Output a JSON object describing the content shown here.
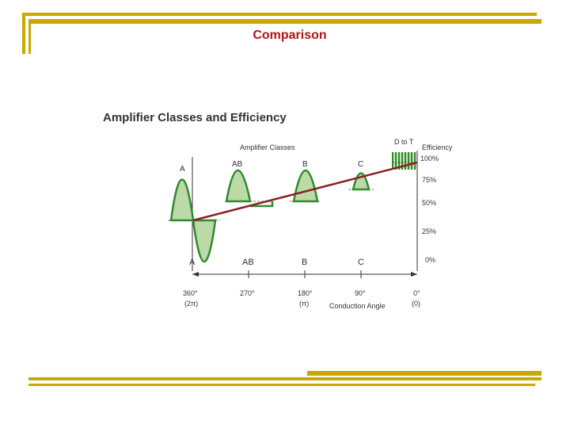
{
  "slide": {
    "title": "Comparison",
    "accent_color": "#c9a800",
    "title_color": "#b01515"
  },
  "figure": {
    "heading": "Amplifier Classes and Efficiency",
    "top_axis_label": "Amplifier Classes",
    "classes_top": [
      "A",
      "AB",
      "B",
      "C",
      "D to T"
    ],
    "classes_bottom": [
      "A",
      "AB",
      "B",
      "C"
    ],
    "efficiency_label": "Efficiency",
    "efficiency_ticks": [
      "100%",
      "75%",
      "50%",
      "25%",
      "0%"
    ],
    "angle_ticks": [
      {
        "deg": "360°",
        "rad": "(2π)"
      },
      {
        "deg": "270°",
        "rad": ""
      },
      {
        "deg": "180°",
        "rad": "(π)"
      },
      {
        "deg": "90°",
        "rad": ""
      },
      {
        "deg": "0°",
        "rad": "(0)"
      }
    ],
    "conduction_label": "Conduction Angle",
    "colors": {
      "wave": "#2f8a2f",
      "fill": "#bcd9a8",
      "efficiency_line": "#8b2020"
    }
  }
}
